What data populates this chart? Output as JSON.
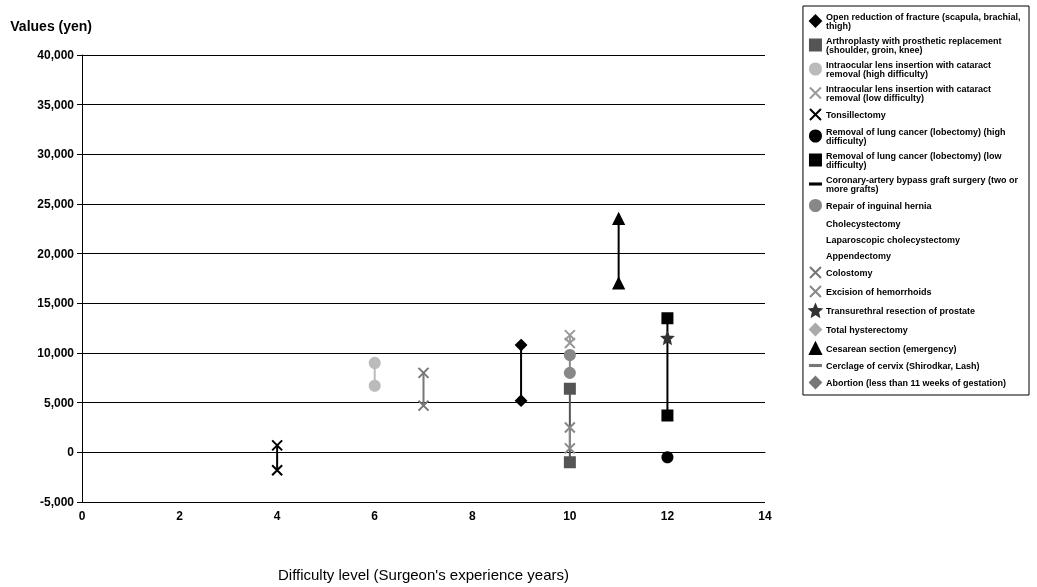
{
  "chart_data": {
    "type": "line",
    "xlabel": "Difficulty level (Surgeon's experience years)",
    "ylabel": "Values (yen)",
    "xlim": [
      0,
      14
    ],
    "xticks": [
      0,
      2,
      4,
      6,
      8,
      10,
      12,
      14
    ],
    "ylim": [
      -5000,
      40000
    ],
    "yticks": [
      {
        "value": -5000,
        "label": "-5,000"
      },
      0,
      {
        "value": 5000,
        "label": "5,000"
      },
      {
        "value": 10000,
        "label": "10,000"
      },
      {
        "value": 15000,
        "label": "15,000"
      },
      {
        "value": 20000,
        "label": "20,000"
      },
      {
        "value": 25000,
        "label": "25,000"
      },
      {
        "value": 30000,
        "label": "30,000"
      },
      {
        "value": 35000,
        "label": "35,000"
      },
      {
        "value": 40000,
        "label": "40,000"
      }
    ],
    "grid": "y",
    "legend": "right",
    "series": [
      {
        "name": "Open reduction of fracture (scapula, brachial, thigh)",
        "color": "#000000",
        "marker": "diamond",
        "x": [
          9,
          9
        ],
        "values": [
          10800,
          5200
        ]
      },
      {
        "name": "Arthroplasty with prosthetic replacement (shoulder, groin, knee)",
        "color": "#555555",
        "marker": "square",
        "x": [
          10,
          10
        ],
        "values": [
          6400,
          -1000
        ]
      },
      {
        "name": "Intraocular lens insertion with cataract removal (high difficulty)",
        "color": "#bbbbbb",
        "marker": "circle",
        "x": [
          6,
          6
        ],
        "values": [
          9000,
          6700
        ]
      },
      {
        "name": "Intraocular lens insertion with cataract removal (low difficulty)",
        "color": "#999999",
        "marker": "cross",
        "x": [
          10,
          10
        ],
        "values": [
          11800,
          11000
        ]
      },
      {
        "name": "Tonsillectomy",
        "color": "#000000",
        "marker": "cross",
        "x": [
          4,
          4
        ],
        "values": [
          700,
          -1800
        ]
      },
      {
        "name": "Removal of lung cancer (lobectomy) (high difficulty)",
        "color": "#000000",
        "marker": "circle",
        "x": [
          12
        ],
        "values": [
          -500
        ]
      },
      {
        "name": "Removal of lung cancer (lobectomy) (low difficulty)",
        "color": "#000000",
        "marker": "square",
        "x": [
          12,
          12
        ],
        "values": [
          13500,
          3700
        ]
      },
      {
        "name": "Coronary-artery bypass graft surgery (two or more grafts)",
        "color": "#000000",
        "marker": "none"
      },
      {
        "name": "Repair of inguinal hernia",
        "color": "#888888",
        "marker": "circle",
        "x": [
          10,
          10
        ],
        "values": [
          9800,
          8000
        ]
      },
      {
        "name": "Cholecystectomy"
      },
      {
        "name": "Laparoscopic cholecystectomy"
      },
      {
        "name": "Appendectomy"
      },
      {
        "name": "Colostomy",
        "color": "#777777",
        "marker": "cross",
        "x": [
          7,
          7
        ],
        "values": [
          8000,
          4700
        ]
      },
      {
        "name": "Excision of hemorrhoids",
        "color": "#888888",
        "marker": "cross",
        "x": [
          10,
          10
        ],
        "values": [
          2500,
          400
        ]
      },
      {
        "name": "Transurethral resection of prostate",
        "color": "#333333",
        "marker": "star",
        "x": [
          12
        ],
        "values": [
          11500
        ]
      },
      {
        "name": "Total hysterectomy",
        "color": "#aaaaaa",
        "marker": "diamond"
      },
      {
        "name": "Cesarean section (emergency)",
        "color": "#000000",
        "marker": "triangle",
        "x": [
          11,
          11
        ],
        "values": [
          23500,
          17000
        ]
      },
      {
        "name": "Cerclage of cervix (Shirodkar, Lash)",
        "color": "#777777",
        "marker": "none"
      },
      {
        "name": "Abortion (less than 11 weeks of gestation)",
        "color": "#777777",
        "marker": "diamond"
      }
    ]
  }
}
